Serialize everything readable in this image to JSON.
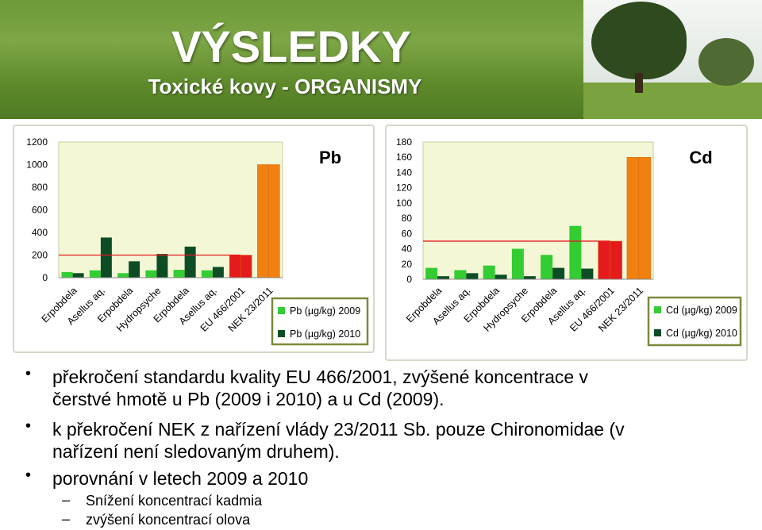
{
  "slide": {
    "title": "VÝSLEDKY",
    "subtitle": "Toxické kovy - ORGANISMY"
  },
  "bullets": [
    {
      "lines": [
        "překročení standardu kvality EU 466/2001, zvýšené koncentrace v",
        "čerstvé hmotě u Pb (2009 i 2010) a u Cd (2009)."
      ]
    },
    {
      "lines": [
        "k překročení NEK z nařízení vlády 23/2011 Sb. pouze Chironomidae (v",
        "nařízení není sledovaným druhem)."
      ]
    },
    {
      "lines": [
        "porovnání v letech 2009 a 2010"
      ]
    }
  ],
  "subbullets": [
    "Snížení koncentrací kadmia",
    "zvýšení koncentrací  olova"
  ],
  "colors": {
    "series2009": "#33cc33",
    "series2010": "#0d4d26",
    "limit": "#e41a1c",
    "nek": "#f08010",
    "plot_bg": "#f4f7d6"
  },
  "chart_data": [
    {
      "type": "bar",
      "title": "Pb",
      "categories": [
        "Erpobdela",
        "Asellus aq.",
        "Erpobdela",
        "Hydropsyche",
        "Erpobdela",
        "Asellus aq.",
        "EU 466/2001",
        "NEK 23/2011"
      ],
      "series": [
        {
          "name": "Pb (µg/kg) 2009",
          "values": [
            50,
            65,
            40,
            65,
            70,
            65,
            200,
            1000
          ]
        },
        {
          "name": "Pb (µg/kg) 2010",
          "values": [
            40,
            355,
            145,
            210,
            275,
            95,
            200,
            1000
          ]
        }
      ],
      "limit_line": 200,
      "yticks": [
        0,
        200,
        400,
        600,
        800,
        1000,
        1200
      ],
      "ylim": [
        0,
        1200
      ],
      "grid": false,
      "legend": "right"
    },
    {
      "type": "bar",
      "title": "Cd",
      "categories": [
        "Erpobdela",
        "Asellus aq.",
        "Erpobdela",
        "Hydropsyche",
        "Erpobdela",
        "Asellus aq.",
        "EU 466/2001",
        "NEK 23/2011"
      ],
      "series": [
        {
          "name": "Cd (µg/kg) 2009",
          "values": [
            15,
            12,
            18,
            40,
            32,
            70,
            50,
            160
          ]
        },
        {
          "name": "Cd (µg/kg) 2010",
          "values": [
            4,
            8,
            6,
            4,
            15,
            14,
            50,
            160
          ]
        }
      ],
      "limit_line": 50,
      "yticks": [
        0,
        20,
        40,
        60,
        80,
        100,
        120,
        140,
        160,
        180
      ],
      "ylim": [
        0,
        180
      ],
      "grid": false,
      "legend": "right"
    }
  ]
}
